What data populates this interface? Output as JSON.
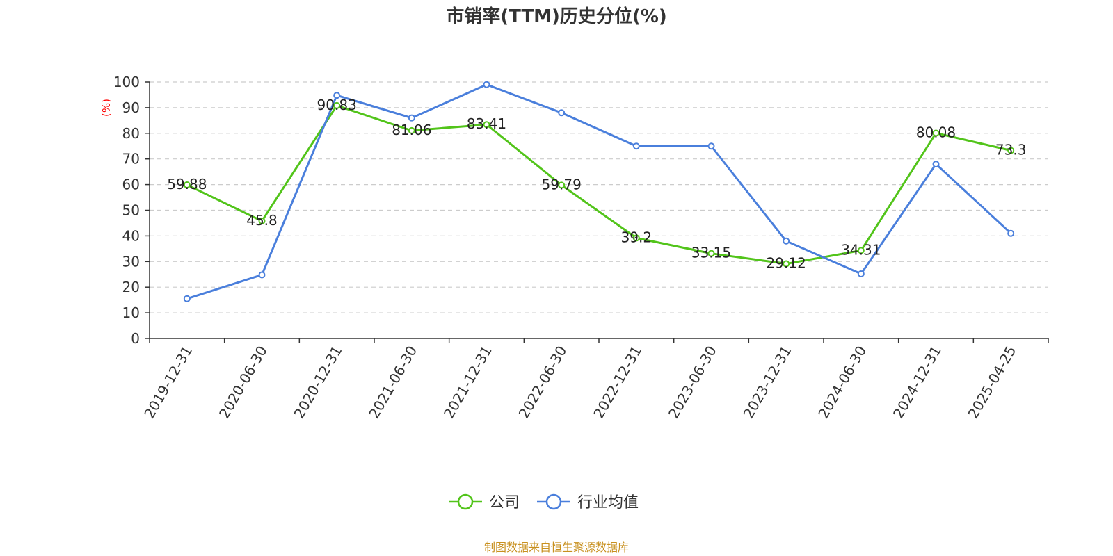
{
  "chart_data": {
    "type": "line",
    "title": "市销率(TTM)历史分位(%)",
    "ylabel": "(%)",
    "xlabel": "",
    "ylim": [
      0,
      100
    ],
    "yticks": [
      0,
      10,
      20,
      30,
      40,
      50,
      60,
      70,
      80,
      90,
      100
    ],
    "grid": true,
    "legend_position": "bottom-center",
    "categories": [
      "2019-12-31",
      "2020-06-30",
      "2020-12-31",
      "2021-06-30",
      "2021-12-31",
      "2022-06-30",
      "2022-12-31",
      "2023-06-30",
      "2023-12-31",
      "2024-06-30",
      "2024-12-31",
      "2025-04-25"
    ],
    "series": [
      {
        "name": "公司",
        "color": "#52c41a",
        "values": [
          59.88,
          45.8,
          90.83,
          81.06,
          83.41,
          59.79,
          39.2,
          33.15,
          29.12,
          34.31,
          80.08,
          73.3
        ],
        "labels": [
          "59.88",
          "45.8",
          "90.83",
          "81.06",
          "83.41",
          "59.79",
          "39.2",
          "33.15",
          "29.12",
          "34.31",
          "80.08",
          "73.3"
        ]
      },
      {
        "name": "行业均值",
        "color": "#4a7fdc",
        "values": [
          15.5,
          24.8,
          94.8,
          86.0,
          99.0,
          88.0,
          75.0,
          75.0,
          38.0,
          25.2,
          68.0,
          41.0
        ]
      }
    ],
    "source": "制图数据来自恒生聚源数据库"
  }
}
